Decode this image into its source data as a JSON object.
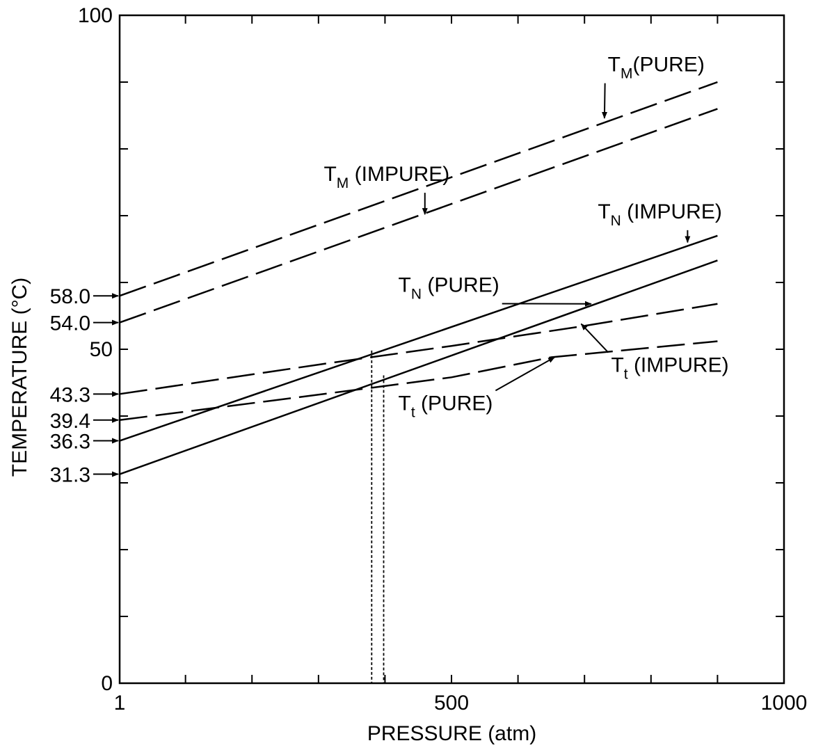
{
  "chart_data": {
    "type": "line",
    "xlabel": "PRESSURE (atm)",
    "ylabel": "TEMPERATURE (°C)",
    "xlim": [
      1,
      1000
    ],
    "ylim": [
      0,
      100
    ],
    "x_ticks": [
      {
        "value": 1,
        "label": "1"
      },
      {
        "value": 500,
        "label": "500"
      },
      {
        "value": 1000,
        "label": "1000"
      }
    ],
    "x_minor_step": 100,
    "y_ticks": [
      {
        "value": 0,
        "label": "0"
      },
      {
        "value": 50,
        "label": "50"
      },
      {
        "value": 100,
        "label": "100"
      }
    ],
    "y_minor_step": 10,
    "y_marked": [
      {
        "value": 58.0,
        "label": "58.0"
      },
      {
        "value": 54.0,
        "label": "54.0"
      },
      {
        "value": 43.3,
        "label": "43.3"
      },
      {
        "value": 39.4,
        "label": "39.4"
      },
      {
        "value": 36.3,
        "label": "36.3"
      },
      {
        "value": 31.3,
        "label": "31.3"
      }
    ],
    "series": [
      {
        "id": "tm-pure",
        "style": "dashed",
        "points": [
          [
            1,
            58.0
          ],
          [
            900,
            90.0
          ]
        ]
      },
      {
        "id": "tm-impure",
        "style": "dashed",
        "points": [
          [
            1,
            54.0
          ],
          [
            900,
            86.0
          ]
        ]
      },
      {
        "id": "tn-impure",
        "style": "solid",
        "points": [
          [
            1,
            36.3
          ],
          [
            900,
            67.0
          ]
        ]
      },
      {
        "id": "tn-pure",
        "style": "solid",
        "points": [
          [
            1,
            31.3
          ],
          [
            900,
            63.3
          ]
        ]
      },
      {
        "id": "tt-impure",
        "style": "dashed",
        "points": [
          [
            1,
            43.3
          ],
          [
            300,
            47.7
          ],
          [
            500,
            50.5
          ],
          [
            700,
            53.5
          ],
          [
            900,
            56.8
          ]
        ]
      },
      {
        "id": "tt-pure",
        "style": "dashed",
        "points": [
          [
            1,
            39.4
          ],
          [
            300,
            43.2
          ],
          [
            500,
            45.8
          ],
          [
            650,
            48.8
          ],
          [
            900,
            51.2
          ]
        ]
      }
    ],
    "intersections": [
      {
        "x": 380,
        "y": 49.8
      },
      {
        "x": 398,
        "y": 46.1
      }
    ],
    "annotations": [
      {
        "target": "tm-pure",
        "main": "T",
        "sub": "M",
        "text": "(PURE)",
        "at": [
          735,
          91.6
        ],
        "point": [
          730,
          84.6
        ]
      },
      {
        "target": "tm-impure",
        "main": "T",
        "sub": "M",
        "text": " (IMPURE)",
        "at": [
          308,
          75.2
        ],
        "point": [
          460,
          70.2
        ]
      },
      {
        "target": "tn-impure",
        "main": "T",
        "sub": "N",
        "text": " (IMPURE)",
        "at": [
          720,
          69.6
        ],
        "point": [
          855,
          66.0
        ]
      },
      {
        "target": "tn-pure",
        "main": "T",
        "sub": "N",
        "text": " (PURE)",
        "at": [
          420,
          58.6
        ],
        "point": [
          710,
          56.8
        ]
      },
      {
        "target": "tt-impure",
        "main": "T",
        "sub": "t",
        "text": " (IMPURE)",
        "at": [
          740,
          46.6
        ],
        "point": [
          695,
          53.8
        ]
      },
      {
        "target": "tt-pure",
        "main": "T",
        "sub": "t",
        "text": " (PURE)",
        "at": [
          420,
          40.9
        ],
        "point": [
          655,
          48.8
        ]
      }
    ]
  }
}
